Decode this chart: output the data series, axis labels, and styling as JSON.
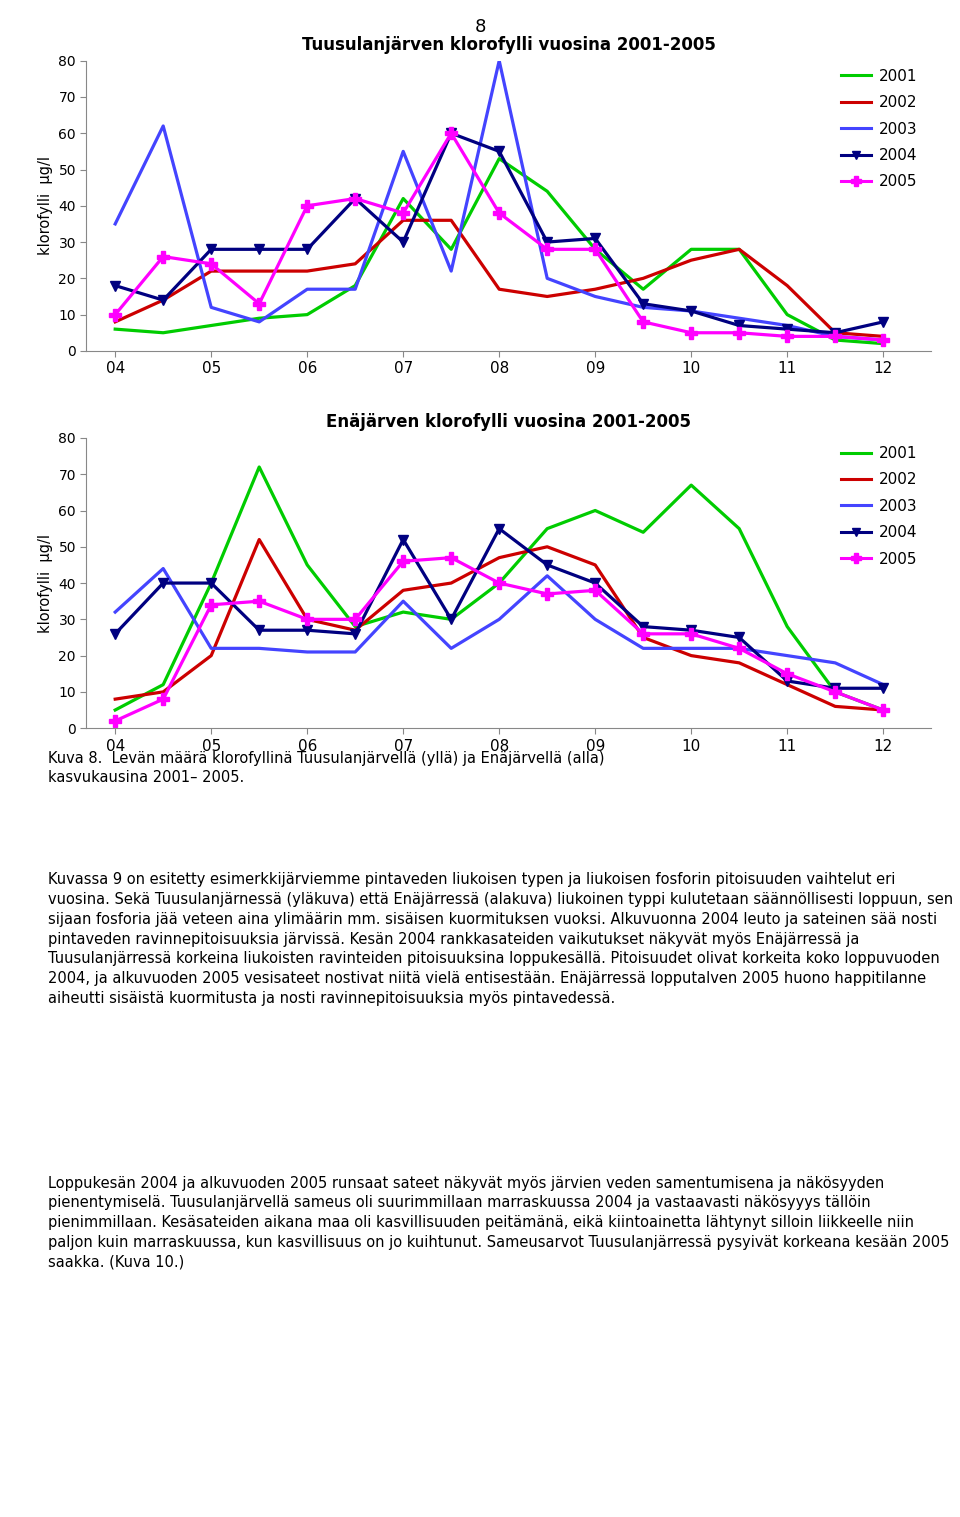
{
  "title1": "Tuusulanjärven klorofylli vuosina 2001-2005",
  "title2": "Enäjärven klorofylli vuosina 2001-2005",
  "ylabel": "klorofylli  µg/l",
  "page_number": "8",
  "ylim": [
    0,
    80
  ],
  "yticks": [
    0,
    10,
    20,
    30,
    40,
    50,
    60,
    70,
    80
  ],
  "xticks": [
    4,
    5,
    6,
    7,
    8,
    9,
    10,
    11,
    12
  ],
  "xticklabels": [
    "04",
    "05",
    "06",
    "07",
    "08",
    "09",
    "10",
    "11",
    "12"
  ],
  "colors": {
    "2001": "#00CC00",
    "2002": "#CC0000",
    "2003": "#4444FF",
    "2004": "#000080",
    "2005": "#FF00FF"
  },
  "tuusula": {
    "2001": {
      "x": [
        4.0,
        4.5,
        5.0,
        5.5,
        6.0,
        6.5,
        7.0,
        7.5,
        8.0,
        8.5,
        9.0,
        9.5,
        10.0,
        10.5,
        11.0,
        11.5,
        12.0
      ],
      "y": [
        6,
        5,
        7,
        9,
        10,
        18,
        42,
        28,
        53,
        44,
        28,
        17,
        28,
        28,
        10,
        3,
        2
      ]
    },
    "2002": {
      "x": [
        4.0,
        4.5,
        5.0,
        5.5,
        6.0,
        6.5,
        7.0,
        7.5,
        8.0,
        8.5,
        9.0,
        9.5,
        10.0,
        10.5,
        11.0,
        11.5,
        12.0
      ],
      "y": [
        8,
        14,
        22,
        22,
        22,
        24,
        36,
        36,
        17,
        15,
        17,
        20,
        25,
        28,
        18,
        5,
        4
      ]
    },
    "2003": {
      "x": [
        4.0,
        4.5,
        5.0,
        5.5,
        6.0,
        6.5,
        7.0,
        7.5,
        8.0,
        8.5,
        9.0,
        9.5,
        10.0,
        10.5,
        11.0,
        11.5,
        12.0
      ],
      "y": [
        35,
        62,
        12,
        8,
        17,
        17,
        55,
        22,
        80,
        20,
        15,
        12,
        11,
        9,
        7,
        4,
        3
      ]
    },
    "2004": {
      "x": [
        4.0,
        4.5,
        5.0,
        5.5,
        6.0,
        6.5,
        7.0,
        7.5,
        8.0,
        8.5,
        9.0,
        9.5,
        10.0,
        10.5,
        11.0,
        11.5,
        12.0
      ],
      "y": [
        18,
        14,
        28,
        28,
        28,
        42,
        30,
        60,
        55,
        30,
        31,
        13,
        11,
        7,
        6,
        5,
        8
      ]
    },
    "2005": {
      "x": [
        4.0,
        4.5,
        5.0,
        5.5,
        6.0,
        6.5,
        7.0,
        7.5,
        8.0,
        8.5,
        9.0,
        9.5,
        10.0,
        10.5,
        11.0,
        11.5,
        12.0
      ],
      "y": [
        10,
        26,
        24,
        13,
        40,
        42,
        38,
        60,
        38,
        28,
        28,
        8,
        5,
        5,
        4,
        4,
        3
      ]
    }
  },
  "enajärvi": {
    "2001": {
      "x": [
        4.0,
        4.5,
        5.0,
        5.5,
        6.0,
        6.5,
        7.0,
        7.5,
        8.0,
        8.5,
        9.0,
        9.5,
        10.0,
        10.5,
        11.0,
        11.5,
        12.0
      ],
      "y": [
        5,
        12,
        40,
        72,
        45,
        28,
        32,
        30,
        40,
        55,
        60,
        54,
        67,
        55,
        28,
        10,
        5
      ]
    },
    "2002": {
      "x": [
        4.0,
        4.5,
        5.0,
        5.5,
        6.0,
        6.5,
        7.0,
        7.5,
        8.0,
        8.5,
        9.0,
        9.5,
        10.0,
        10.5,
        11.0,
        11.5,
        12.0
      ],
      "y": [
        8,
        10,
        20,
        52,
        30,
        27,
        38,
        40,
        47,
        50,
        45,
        25,
        20,
        18,
        12,
        6,
        5
      ]
    },
    "2003": {
      "x": [
        4.0,
        4.5,
        5.0,
        5.5,
        6.0,
        6.5,
        7.0,
        7.5,
        8.0,
        8.5,
        9.0,
        9.5,
        10.0,
        10.5,
        11.0,
        11.5,
        12.0
      ],
      "y": [
        32,
        44,
        22,
        22,
        21,
        21,
        35,
        22,
        30,
        42,
        30,
        22,
        22,
        22,
        20,
        18,
        12
      ]
    },
    "2004": {
      "x": [
        4.0,
        4.5,
        5.0,
        5.5,
        6.0,
        6.5,
        7.0,
        7.5,
        8.0,
        8.5,
        9.0,
        9.5,
        10.0,
        10.5,
        11.0,
        11.5,
        12.0
      ],
      "y": [
        26,
        40,
        40,
        27,
        27,
        26,
        52,
        30,
        55,
        45,
        40,
        28,
        27,
        25,
        13,
        11,
        11
      ]
    },
    "2005": {
      "x": [
        4.0,
        4.5,
        5.0,
        5.5,
        6.0,
        6.5,
        7.0,
        7.5,
        8.0,
        8.5,
        9.0,
        9.5,
        10.0,
        10.5,
        11.0,
        11.5,
        12.0
      ],
      "y": [
        2,
        8,
        34,
        35,
        30,
        30,
        46,
        47,
        40,
        37,
        38,
        26,
        26,
        22,
        15,
        10,
        5
      ]
    }
  },
  "caption_line1": "Kuva 8.  Levän määrä klorofyllinä Tuusulanjärvellä (yllä) ja Enäjärvellä (alla)",
  "caption_line2": "kasvukausina 2001– 2005.",
  "para1": "Kuvassa 9 on esitetty esimerkkijärviemme pintaveden liukoisen typen ja liukoisen fosforin pitoisuuden vaihtelut eri vuosina. Sekä Tuusulanjärnessä (yläkuva) että Enäjärressä (alakuva) liukoinen typpi kulutetaan säännöllisesti loppuun, sen sijaan fosforia jää veteen aina ylimäärin mm. sisäisen kuormituksen vuoksi. Alkuvuonna 2004 leuto ja sateinen sää nosti pintaveden ravinnepitoisuuksia järvissä. Kesän 2004 rankkasateiden vaikutukset näkyvät myös Enäjärressä ja Tuusulanjärressä korkeina liukoisten ravinteiden pitoisuuksina loppukesällä. Pitoisuudet olivat korkeita koko loppuvuoden 2004, ja alkuvuoden 2005 vesisateet nostivat niitä vielä entisestään. Enäjärressä lopputalven 2005 huono happitilanne aiheutti sisäistä kuormitusta ja nosti ravinnepitoisuuksia myös pintavedessä.",
  "para2": "Loppukesän 2004 ja alkuvuoden 2005 runsaat sateet näkyvät myös järvien veden samentumisena ja näkösyyden pienentymiselä. Tuusulanjärvellä sameus oli suurimmillaan marraskuussa 2004 ja vastaavasti näkösyyys tällöin pienimmillaan. Kesäsateiden aikana maa oli kasvillisuuden peitämänä, eikä kiintoainetta lähtynyt silloin liikkeelle niin paljon kuin marraskuussa, kun kasvillisuus on jo kuihtunut. Sameusarvot Tuusulanjärressä pysyivät korkeana kesään 2005 saakka. (Kuva 10.)"
}
